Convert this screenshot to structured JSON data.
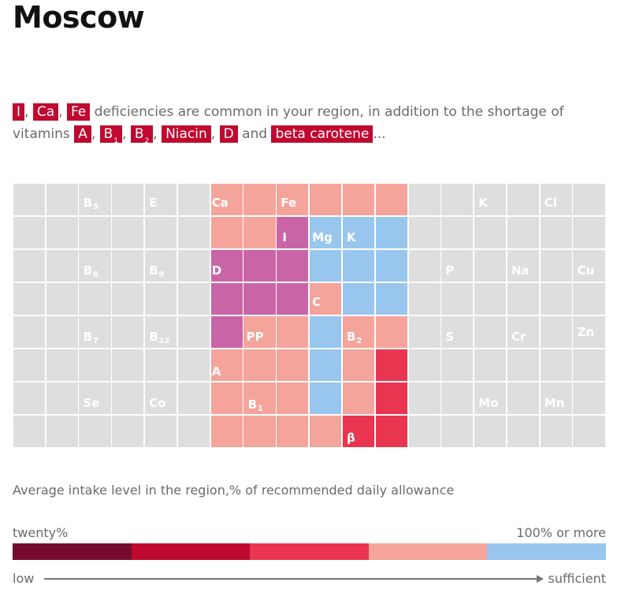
{
  "title": "Moscow",
  "intro": {
    "tags_main": [
      "I",
      "Ca",
      "Fe"
    ],
    "text_main": "deficiencies are common in your region, in addition to the shortage of",
    "text_vitamins": "vitamins",
    "vitamins": [
      {
        "text": "A",
        "sub": ""
      },
      {
        "text": "B",
        "sub": "1"
      },
      {
        "text": "B",
        "sub": "2"
      },
      {
        "text": "Niacin",
        "sub": ""
      },
      {
        "text": "D",
        "sub": ""
      }
    ],
    "and_word": "and",
    "last_tag": "beta carotene",
    "ellipsis": "..."
  },
  "colors": {
    "gray": "#dedede",
    "salmon": "#f4a49a",
    "purple": "#c965a6",
    "blue": "#98c6ee",
    "red": "#ea3550",
    "tag_bg": "#c0092f"
  },
  "grid": {
    "cells": [
      {
        "label": "B",
        "sub": "5"
      },
      {
        "label": "E",
        "sub": ""
      },
      {
        "label": "Ca",
        "sub": ""
      },
      {
        "label": "Fe",
        "sub": ""
      },
      {
        "label": "K",
        "sub": ""
      },
      {
        "label": "Cl",
        "sub": ""
      },
      {
        "label": "I",
        "sub": ""
      },
      {
        "label": "Mg",
        "sub": ""
      },
      {
        "label": "K",
        "sub": ""
      },
      {
        "label": "B",
        "sub": "6"
      },
      {
        "label": "B",
        "sub": "9"
      },
      {
        "label": "D",
        "sub": ""
      },
      {
        "label": "P",
        "sub": ""
      },
      {
        "label": "Na",
        "sub": ""
      },
      {
        "label": "Cu",
        "sub": ""
      },
      {
        "label": "C",
        "sub": ""
      },
      {
        "label": "B",
        "sub": "7"
      },
      {
        "label": "B",
        "sub": "12"
      },
      {
        "label": "PP",
        "sub": ""
      },
      {
        "label": "B",
        "sub": "2"
      },
      {
        "label": "S",
        "sub": ""
      },
      {
        "label": "Cr",
        "sub": ""
      },
      {
        "label": "Zn",
        "sub": ""
      },
      {
        "label": "A",
        "sub": ""
      },
      {
        "label": "Se",
        "sub": ""
      },
      {
        "label": "Co",
        "sub": ""
      },
      {
        "label": "B",
        "sub": "1"
      },
      {
        "label": "Mo",
        "sub": ""
      },
      {
        "label": "Mn",
        "sub": ""
      },
      {
        "label": "β",
        "sub": ""
      }
    ]
  },
  "legend": {
    "caption": "Average intake level in the region,% of recommended daily allowance",
    "min_label": "twenty%",
    "max_label": "100% or more",
    "scale_colors": [
      "#750b2d",
      "#c0092f",
      "#ea3550",
      "#f4a49a",
      "#98c6ee"
    ],
    "low_label": "low",
    "high_label": "sufficient"
  }
}
